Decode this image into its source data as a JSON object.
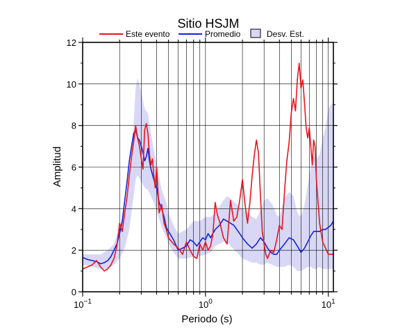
{
  "chart_data": {
    "type": "line",
    "title": "Sitio HSJM",
    "xlabel": "Periodo (s)",
    "ylabel": "Amplitud",
    "xscale": "log",
    "xlim": [
      0.1,
      11
    ],
    "ylim": [
      0,
      12
    ],
    "y_ticks": [
      0,
      2,
      4,
      6,
      8,
      10,
      12
    ],
    "x_tick_labels": [
      {
        "base": "10",
        "exp": "−1"
      },
      {
        "base": "10",
        "exp": "0"
      },
      {
        "base": "10",
        "exp": "1"
      }
    ],
    "grid": true,
    "legend_position": "top",
    "legend": [
      {
        "label": "Este evento",
        "color": "#e8141b",
        "kind": "line"
      },
      {
        "label": "Promedio",
        "color": "#1520d8",
        "kind": "line"
      },
      {
        "label": "Desv. Est.",
        "color": "#d8d8f6",
        "kind": "box"
      }
    ],
    "series": [
      {
        "name": "Este evento",
        "color": "#e8141b",
        "x": [
          0.1,
          0.11,
          0.12,
          0.13,
          0.14,
          0.15,
          0.16,
          0.17,
          0.18,
          0.19,
          0.2,
          0.21,
          0.22,
          0.23,
          0.24,
          0.25,
          0.26,
          0.27,
          0.28,
          0.29,
          0.3,
          0.31,
          0.32,
          0.33,
          0.34,
          0.35,
          0.36,
          0.37,
          0.38,
          0.39,
          0.4,
          0.42,
          0.44,
          0.46,
          0.48,
          0.5,
          0.55,
          0.6,
          0.65,
          0.7,
          0.75,
          0.8,
          0.85,
          0.9,
          0.95,
          1.0,
          1.05,
          1.1,
          1.15,
          1.2,
          1.25,
          1.3,
          1.4,
          1.5,
          1.6,
          1.7,
          1.8,
          1.9,
          2.0,
          2.1,
          2.2,
          2.3,
          2.4,
          2.5,
          2.6,
          2.7,
          2.8,
          2.9,
          3.0,
          3.1,
          3.2,
          3.4,
          3.6,
          3.8,
          4.0,
          4.2,
          4.4,
          4.6,
          4.8,
          5.0,
          5.2,
          5.4,
          5.6,
          5.8,
          6.0,
          6.2,
          6.4,
          6.6,
          6.8,
          7.0,
          7.2,
          7.4,
          7.6,
          7.8,
          8.0,
          8.5,
          9.0,
          9.5,
          10.0,
          10.5,
          11.0
        ],
        "values": [
          1.1,
          1.2,
          1.3,
          1.5,
          1.2,
          1.0,
          1.1,
          1.3,
          1.6,
          2.2,
          3.3,
          2.9,
          3.8,
          4.6,
          5.6,
          6.5,
          7.2,
          8.0,
          7.4,
          7.0,
          6.4,
          5.9,
          7.8,
          8.1,
          7.6,
          6.6,
          6.1,
          6.4,
          5.6,
          5.0,
          6.0,
          3.8,
          4.2,
          3.3,
          3.0,
          2.6,
          2.3,
          2.1,
          1.8,
          2.4,
          2.0,
          1.7,
          1.6,
          2.3,
          2.0,
          2.4,
          2.0,
          2.2,
          2.8,
          4.3,
          3.7,
          3.4,
          2.6,
          2.3,
          4.4,
          3.4,
          3.6,
          4.4,
          5.4,
          4.2,
          3.3,
          4.3,
          5.6,
          6.6,
          7.3,
          6.7,
          4.7,
          2.9,
          2.3,
          1.8,
          1.6,
          2.0,
          1.9,
          2.5,
          3.2,
          3.0,
          4.8,
          6.3,
          7.2,
          8.6,
          9.3,
          8.7,
          10.2,
          11.0,
          9.8,
          10.2,
          9.1,
          7.9,
          7.4,
          7.9,
          7.0,
          6.1,
          7.3,
          7.0,
          5.4,
          3.3,
          2.4,
          2.1,
          1.8,
          1.8,
          1.8
        ]
      },
      {
        "name": "Promedio",
        "color": "#1520d8",
        "x": [
          0.1,
          0.11,
          0.12,
          0.13,
          0.14,
          0.15,
          0.16,
          0.17,
          0.18,
          0.19,
          0.2,
          0.21,
          0.22,
          0.23,
          0.24,
          0.25,
          0.26,
          0.27,
          0.28,
          0.29,
          0.3,
          0.31,
          0.32,
          0.33,
          0.34,
          0.35,
          0.36,
          0.38,
          0.4,
          0.42,
          0.44,
          0.46,
          0.48,
          0.5,
          0.55,
          0.6,
          0.65,
          0.7,
          0.75,
          0.8,
          0.85,
          0.9,
          0.95,
          1.0,
          1.05,
          1.1,
          1.2,
          1.3,
          1.4,
          1.5,
          1.6,
          1.7,
          1.8,
          1.9,
          2.0,
          2.2,
          2.4,
          2.6,
          2.8,
          3.0,
          3.2,
          3.4,
          3.6,
          3.8,
          4.0,
          4.4,
          4.8,
          5.2,
          5.6,
          6.0,
          6.4,
          6.8,
          7.2,
          7.6,
          8.0,
          8.5,
          9.0,
          9.5,
          10.0,
          10.5,
          11.0
        ],
        "values": [
          1.65,
          1.55,
          1.5,
          1.45,
          1.35,
          1.4,
          1.5,
          1.7,
          2.0,
          2.3,
          2.8,
          3.4,
          4.4,
          5.3,
          6.3,
          7.0,
          7.6,
          7.8,
          7.4,
          7.3,
          7.0,
          6.7,
          6.3,
          6.5,
          6.9,
          6.3,
          5.9,
          5.4,
          5.0,
          4.3,
          4.0,
          3.6,
          3.1,
          2.9,
          2.5,
          2.0,
          2.1,
          2.2,
          2.5,
          2.4,
          2.2,
          2.4,
          2.6,
          2.5,
          2.8,
          2.6,
          3.0,
          3.2,
          3.5,
          3.4,
          3.3,
          3.2,
          3.0,
          2.8,
          2.6,
          2.3,
          2.1,
          2.3,
          2.6,
          2.4,
          2.1,
          1.9,
          1.8,
          1.8,
          2.0,
          2.3,
          2.6,
          2.5,
          2.2,
          1.9,
          2.1,
          2.4,
          2.7,
          2.9,
          2.9,
          2.9,
          3.0,
          3.0,
          3.1,
          3.2,
          3.4
        ]
      }
    ],
    "band": {
      "name": "Desv. Est.",
      "color": "#d8d8f6",
      "x": [
        0.1,
        0.12,
        0.14,
        0.16,
        0.18,
        0.2,
        0.22,
        0.24,
        0.26,
        0.27,
        0.28,
        0.3,
        0.32,
        0.34,
        0.36,
        0.38,
        0.4,
        0.44,
        0.48,
        0.5,
        0.55,
        0.6,
        0.7,
        0.8,
        0.9,
        1.0,
        1.1,
        1.2,
        1.3,
        1.4,
        1.5,
        1.6,
        1.8,
        2.0,
        2.2,
        2.4,
        2.6,
        2.8,
        3.0,
        3.2,
        3.5,
        3.8,
        4.0,
        4.4,
        4.8,
        5.2,
        5.6,
        6.0,
        6.4,
        6.8,
        7.2,
        7.6,
        8.0,
        8.5,
        9.0,
        9.5,
        10.0,
        10.5,
        11.0
      ],
      "lower": [
        1.3,
        1.2,
        1.1,
        1.1,
        1.3,
        1.6,
        2.1,
        3.0,
        4.6,
        5.4,
        5.6,
        5.3,
        5.0,
        4.9,
        4.6,
        4.3,
        3.9,
        3.1,
        2.6,
        2.3,
        1.9,
        1.6,
        1.6,
        1.7,
        1.7,
        1.8,
        1.9,
        2.2,
        2.3,
        2.4,
        2.4,
        2.2,
        1.9,
        1.6,
        1.5,
        1.4,
        1.4,
        1.3,
        1.3,
        1.4,
        1.3,
        1.2,
        1.2,
        1.2,
        1.3,
        1.2,
        1.0,
        1.0,
        1.1,
        1.2,
        1.2,
        1.1,
        1.1,
        1.2,
        1.1,
        1.1,
        1.1,
        1.1,
        1.1
      ],
      "upper": [
        1.8,
        1.8,
        1.8,
        2.0,
        2.3,
        3.1,
        4.0,
        5.6,
        8.1,
        9.8,
        10.3,
        9.6,
        8.8,
        8.6,
        7.6,
        6.8,
        6.2,
        4.9,
        4.3,
        3.8,
        3.2,
        2.8,
        3.0,
        3.4,
        3.4,
        3.6,
        3.6,
        3.8,
        4.1,
        4.4,
        4.6,
        4.5,
        4.2,
        4.0,
        3.8,
        3.6,
        3.5,
        3.9,
        4.4,
        4.5,
        4.2,
        3.7,
        3.6,
        4.5,
        4.8,
        4.6,
        3.8,
        3.6,
        4.2,
        5.1,
        6.0,
        6.5,
        6.4,
        6.6,
        7.4,
        7.9,
        8.8,
        9.0,
        9.1
      ]
    }
  }
}
